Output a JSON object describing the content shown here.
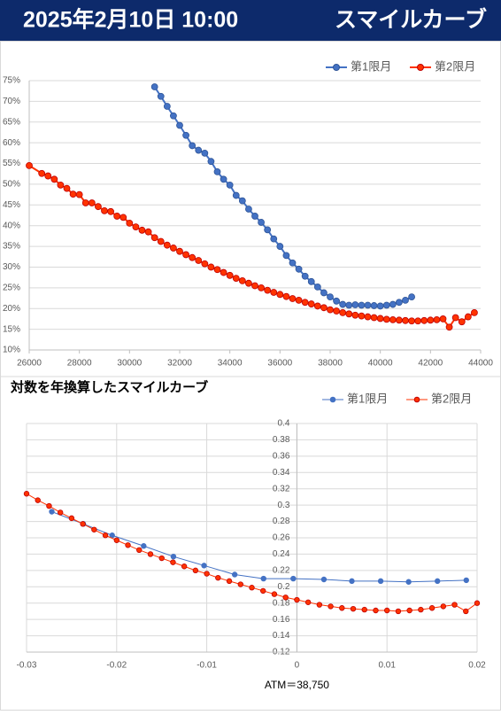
{
  "header": {
    "date": "2025年2月10日 10:00",
    "title": "スマイルカーブ"
  },
  "chart_data": [
    {
      "type": "line",
      "legend": "top-right",
      "grid": true,
      "xgrid": false,
      "line_width": 2,
      "marker_radius": 3.5,
      "xlim": [
        26000,
        44000
      ],
      "xticks": [
        26000,
        28000,
        30000,
        32000,
        34000,
        36000,
        38000,
        40000,
        42000,
        44000
      ],
      "ylim": [
        10,
        75
      ],
      "yticks": [
        {
          "value": 10,
          "label": "10%"
        },
        {
          "value": 15,
          "label": "15%"
        },
        {
          "value": 20,
          "label": "20%"
        },
        {
          "value": 25,
          "label": "25%"
        },
        {
          "value": 30,
          "label": "30%"
        },
        {
          "value": 35,
          "label": "35%"
        },
        {
          "value": 40,
          "label": "40%"
        },
        {
          "value": 45,
          "label": "45%"
        },
        {
          "value": 50,
          "label": "50%"
        },
        {
          "value": 55,
          "label": "55%"
        },
        {
          "value": 60,
          "label": "60%"
        },
        {
          "value": 65,
          "label": "65%"
        },
        {
          "value": 70,
          "label": "70%"
        },
        {
          "value": 75,
          "label": "75%"
        }
      ],
      "series": [
        {
          "name": "第1限月",
          "color": "#4472c4",
          "edge": "#2f5597",
          "x": [
            31000,
            31250,
            31500,
            31750,
            32000,
            32250,
            32500,
            32750,
            33000,
            33250,
            33500,
            33750,
            34000,
            34250,
            34500,
            34750,
            35000,
            35250,
            35500,
            35750,
            36000,
            36250,
            36500,
            36750,
            37000,
            37250,
            37500,
            37750,
            38000,
            38250,
            38500,
            38750,
            39000,
            39250,
            39500,
            39750,
            40000,
            40250,
            40500,
            40750,
            41000,
            41250
          ],
          "values": [
            73.5,
            71.2,
            68.8,
            66.5,
            64.2,
            61.8,
            59.3,
            58.2,
            57.5,
            55.5,
            53,
            51.2,
            49.8,
            47.3,
            46,
            44,
            42.3,
            40.8,
            39,
            36.8,
            35,
            32.8,
            31,
            29.5,
            27.8,
            26.5,
            25.2,
            23.8,
            22.8,
            21.8,
            21,
            20.8,
            20.9,
            20.8,
            20.8,
            20.7,
            20.6,
            20.8,
            21,
            21.5,
            22,
            22.8
          ]
        },
        {
          "name": "第2限月",
          "color": "#ff3300",
          "edge": "#c00000",
          "x": [
            26000,
            26500,
            26750,
            27000,
            27250,
            27500,
            27750,
            28000,
            28250,
            28500,
            28750,
            29000,
            29250,
            29500,
            29750,
            30000,
            30250,
            30500,
            30750,
            31000,
            31250,
            31500,
            31750,
            32000,
            32250,
            32500,
            32750,
            33000,
            33250,
            33500,
            33750,
            34000,
            34250,
            34500,
            34750,
            35000,
            35250,
            35500,
            35750,
            36000,
            36250,
            36500,
            36750,
            37000,
            37250,
            37500,
            37750,
            38000,
            38250,
            38500,
            38750,
            39000,
            39250,
            39500,
            39750,
            40000,
            40250,
            40500,
            40750,
            41000,
            41250,
            41500,
            41750,
            42000,
            42250,
            42500,
            42750,
            43000,
            43250,
            43500,
            43750
          ],
          "values": [
            54.5,
            52.6,
            52.0,
            51.2,
            49.8,
            49.0,
            47.6,
            47.5,
            45.5,
            45.5,
            44.6,
            43.6,
            43.4,
            42.3,
            42.0,
            40.6,
            39.7,
            38.9,
            38.5,
            37.1,
            36.2,
            35.3,
            34.6,
            33.8,
            33.0,
            32.3,
            31.6,
            30.8,
            30.0,
            29.4,
            28.7,
            28.0,
            27.3,
            26.7,
            26.1,
            25.5,
            25.0,
            24.4,
            23.9,
            23.4,
            22.9,
            22.4,
            22.0,
            21.5,
            21.1,
            20.6,
            20.2,
            19.7,
            19.4,
            19.0,
            18.7,
            18.4,
            18.2,
            18.0,
            17.8,
            17.6,
            17.4,
            17.3,
            17.2,
            17.1,
            17.0,
            17.0,
            17.1,
            17.2,
            17.3,
            17.5,
            15.5,
            17.8,
            16.8,
            18.0,
            19.0
          ]
        }
      ]
    },
    {
      "type": "line",
      "title": "対数を年換算したスマイルカーブ",
      "legend": "top-right",
      "grid": true,
      "xgrid": true,
      "y_axis_crosses": 0,
      "line_width": 1,
      "marker_radius": 2.8,
      "annotation": "ATM＝38,750",
      "xlim": [
        -0.03,
        0.02
      ],
      "xticks": [
        -0.03,
        -0.02,
        -0.01,
        0,
        0.01,
        0.02
      ],
      "ylim": [
        0.12,
        0.4
      ],
      "yticks": [
        0.12,
        0.14,
        0.16,
        0.18,
        0.2,
        0.22,
        0.24,
        0.26,
        0.28,
        0.3,
        0.32,
        0.34,
        0.36,
        0.38,
        0.4
      ],
      "series": [
        {
          "name": "第1限月",
          "color": "#4472c4",
          "edge": "#4472c4",
          "x": [
            -0.0272,
            -0.0237,
            -0.0205,
            -0.017,
            -0.0137,
            -0.0103,
            -0.0069,
            -0.0037,
            -0.0004,
            0.003,
            0.0061,
            0.0093,
            0.0124,
            0.0156,
            0.0188
          ],
          "values": [
            0.292,
            0.277,
            0.263,
            0.25,
            0.237,
            0.226,
            0.215,
            0.21,
            0.21,
            0.209,
            0.207,
            0.207,
            0.206,
            0.207,
            0.208
          ]
        },
        {
          "name": "第2限月",
          "color": "#ff3300",
          "edge": "#c00000",
          "x": [
            -0.03,
            -0.02875,
            -0.0275,
            -0.02625,
            -0.025,
            -0.02375,
            -0.0225,
            -0.02125,
            -0.02,
            -0.01875,
            -0.0175,
            -0.01625,
            -0.015,
            -0.01375,
            -0.0125,
            -0.01125,
            -0.01,
            -0.00875,
            -0.0075,
            -0.00625,
            -0.005,
            -0.00375,
            -0.0025,
            -0.00125,
            0,
            0.00125,
            0.0025,
            0.00375,
            0.005,
            0.00625,
            0.0075,
            0.00875,
            0.01,
            0.01125,
            0.0125,
            0.01375,
            0.015,
            0.01625,
            0.0175,
            0.01875,
            0.02
          ],
          "values": [
            0.314,
            0.306,
            0.299,
            0.291,
            0.284,
            0.277,
            0.27,
            0.263,
            0.257,
            0.251,
            0.245,
            0.24,
            0.235,
            0.23,
            0.225,
            0.22,
            0.216,
            0.211,
            0.207,
            0.203,
            0.199,
            0.195,
            0.191,
            0.187,
            0.184,
            0.181,
            0.178,
            0.176,
            0.174,
            0.173,
            0.172,
            0.171,
            0.171,
            0.17,
            0.171,
            0.172,
            0.174,
            0.176,
            0.178,
            0.17,
            0.18
          ]
        }
      ]
    }
  ]
}
